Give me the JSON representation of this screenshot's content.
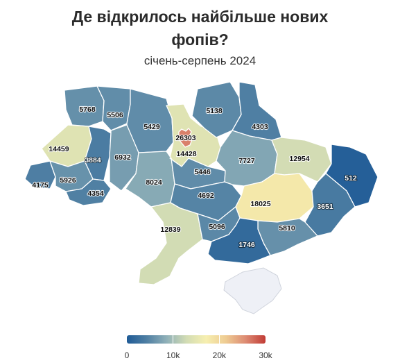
{
  "title_line1": "Де відкрилось найбільше нових",
  "title_line2": "фопів?",
  "subtitle": "січень-серпень 2024",
  "colors": {
    "scale": [
      "#1f5b96",
      "#4f7fa3",
      "#8fb0b8",
      "#d2dcb4",
      "#f6efb0",
      "#eecb92",
      "#dd8b73",
      "#c13b35"
    ],
    "crimea": "#eef0f6",
    "label_dark": "#111111",
    "label_light": "#ffffff"
  },
  "legend": {
    "min": 0,
    "max": 30000,
    "ticks": [
      {
        "value": 0,
        "label": "0"
      },
      {
        "value": 10000,
        "label": "10k"
      },
      {
        "value": 20000,
        "label": "20k"
      },
      {
        "value": 30000,
        "label": "30k"
      }
    ]
  },
  "regions": {
    "volyn": {
      "value": 5768
    },
    "rivne": {
      "value": 5506
    },
    "zhytomyr": {
      "value": 5429
    },
    "kyiv_oblast": {
      "value": 14428
    },
    "kyiv_city": {
      "value": 26303
    },
    "chernihiv": {
      "value": 5138
    },
    "sumy": {
      "value": 4303
    },
    "lviv": {
      "value": 14459
    },
    "ternopil": {
      "value": 3884
    },
    "khmelnytskyi": {
      "value": 6932
    },
    "vinnytsia": {
      "value": 8024
    },
    "cherkasy": {
      "value": 5446
    },
    "poltava": {
      "value": 7727
    },
    "kharkiv": {
      "value": 12954
    },
    "luhansk": {
      "value": 512
    },
    "zakarpattia": {
      "value": 4175
    },
    "ivano_frankivsk": {
      "value": 5926
    },
    "chernivtsi": {
      "value": 4354
    },
    "kirovohrad": {
      "value": 4692
    },
    "dnipropetrovsk": {
      "value": 18025
    },
    "donetsk": {
      "value": 3651
    },
    "odesa": {
      "value": 12839
    },
    "mykolaiv": {
      "value": 5096
    },
    "zaporizhzhia": {
      "value": 5810
    },
    "kherson": {
      "value": 1746
    }
  }
}
